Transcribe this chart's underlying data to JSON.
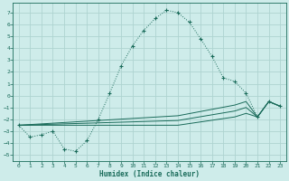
{
  "xlabel": "Humidex (Indice chaleur)",
  "bg_color": "#ceecea",
  "grid_color": "#aed4d0",
  "line_color": "#1a6b5a",
  "xlim": [
    -0.5,
    23.5
  ],
  "ylim": [
    -5.5,
    7.8
  ],
  "xticks": [
    0,
    1,
    2,
    3,
    4,
    5,
    6,
    7,
    8,
    9,
    10,
    11,
    12,
    13,
    14,
    15,
    16,
    17,
    18,
    19,
    20,
    21,
    22,
    23
  ],
  "yticks": [
    -5,
    -4,
    -3,
    -2,
    -1,
    0,
    1,
    2,
    3,
    4,
    5,
    6,
    7
  ],
  "main_x": [
    0,
    1,
    2,
    3,
    4,
    5,
    6,
    7,
    8,
    9,
    10,
    11,
    12,
    13,
    14,
    15,
    16,
    17,
    18,
    19,
    20,
    21,
    22,
    23
  ],
  "main_y": [
    -2.5,
    -3.5,
    -3.3,
    -3.0,
    -4.5,
    -4.7,
    -3.8,
    -2.0,
    0.2,
    2.5,
    4.2,
    5.5,
    6.5,
    7.2,
    7.0,
    6.2,
    4.8,
    3.3,
    1.5,
    1.2,
    0.2,
    -1.8,
    -0.5,
    -0.9
  ],
  "line2_x": [
    0,
    14,
    19,
    20,
    21,
    22,
    23
  ],
  "line2_y": [
    -2.5,
    -2.5,
    -1.8,
    -1.5,
    -1.8,
    -0.5,
    -0.9
  ],
  "line3_x": [
    0,
    14,
    19,
    20,
    21,
    22,
    23
  ],
  "line3_y": [
    -2.5,
    -2.1,
    -1.3,
    -1.0,
    -1.8,
    -0.5,
    -0.9
  ],
  "line4_x": [
    0,
    14,
    19,
    20,
    21,
    22,
    23
  ],
  "line4_y": [
    -2.5,
    -1.7,
    -0.8,
    -0.5,
    -1.8,
    -0.5,
    -0.9
  ]
}
